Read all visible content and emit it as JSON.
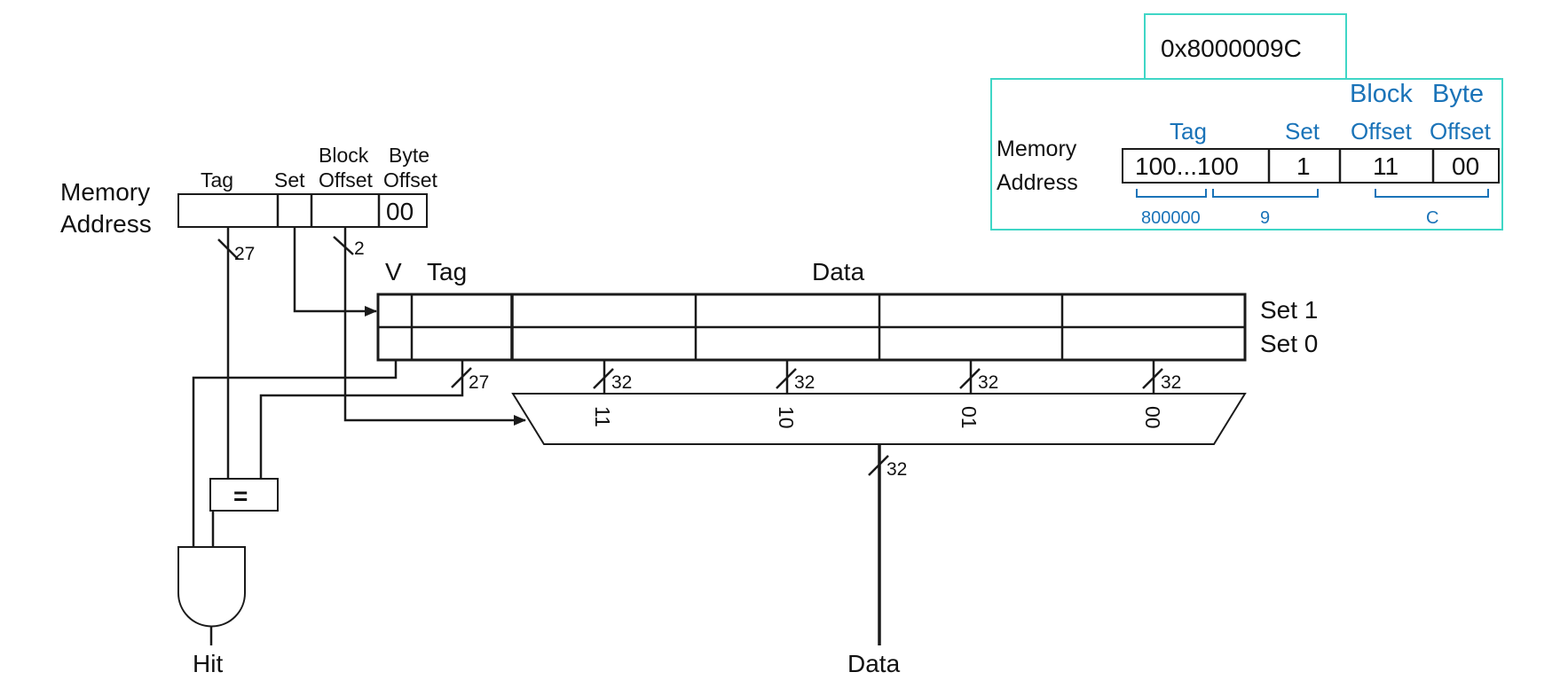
{
  "left_address": {
    "title_line1": "Memory",
    "title_line2": "Address",
    "field_tag": "Tag",
    "field_set": "Set",
    "field_block_line1": "Block",
    "field_block_line2": "Offset",
    "field_byte_line1": "Byte",
    "field_byte_line2": "Offset",
    "byte_value": "00",
    "tag_width": "27",
    "block_width": "2"
  },
  "cache": {
    "col_v": "V",
    "col_tag": "Tag",
    "col_data": "Data",
    "row_set1": "Set 1",
    "row_set0": "Set 0",
    "tag_bus_width": "27",
    "word_widths": [
      "32",
      "32",
      "32",
      "32"
    ]
  },
  "mux": {
    "inputs": [
      "11",
      "10",
      "01",
      "00"
    ],
    "output_width": "32"
  },
  "comparator_label": "=",
  "outputs": {
    "hit": "Hit",
    "data": "Data"
  },
  "example": {
    "address_hex": "0x8000009C",
    "title_line1": "Memory",
    "title_line2": "Address",
    "field_tag": "Tag",
    "field_set": "Set",
    "field_block_line1": "Block",
    "field_block_line2": "Offset",
    "field_byte_line1": "Byte",
    "field_byte_line2": "Offset",
    "tag_bits": "100...100",
    "set_bit": "1",
    "block_bits": "11",
    "byte_bits": "00",
    "hex_groups": [
      "800000",
      "9",
      "C"
    ]
  },
  "colors": {
    "accent_blue": "#1a73b8",
    "box_teal": "#3fd6c6",
    "line": "#1a1a1a"
  }
}
